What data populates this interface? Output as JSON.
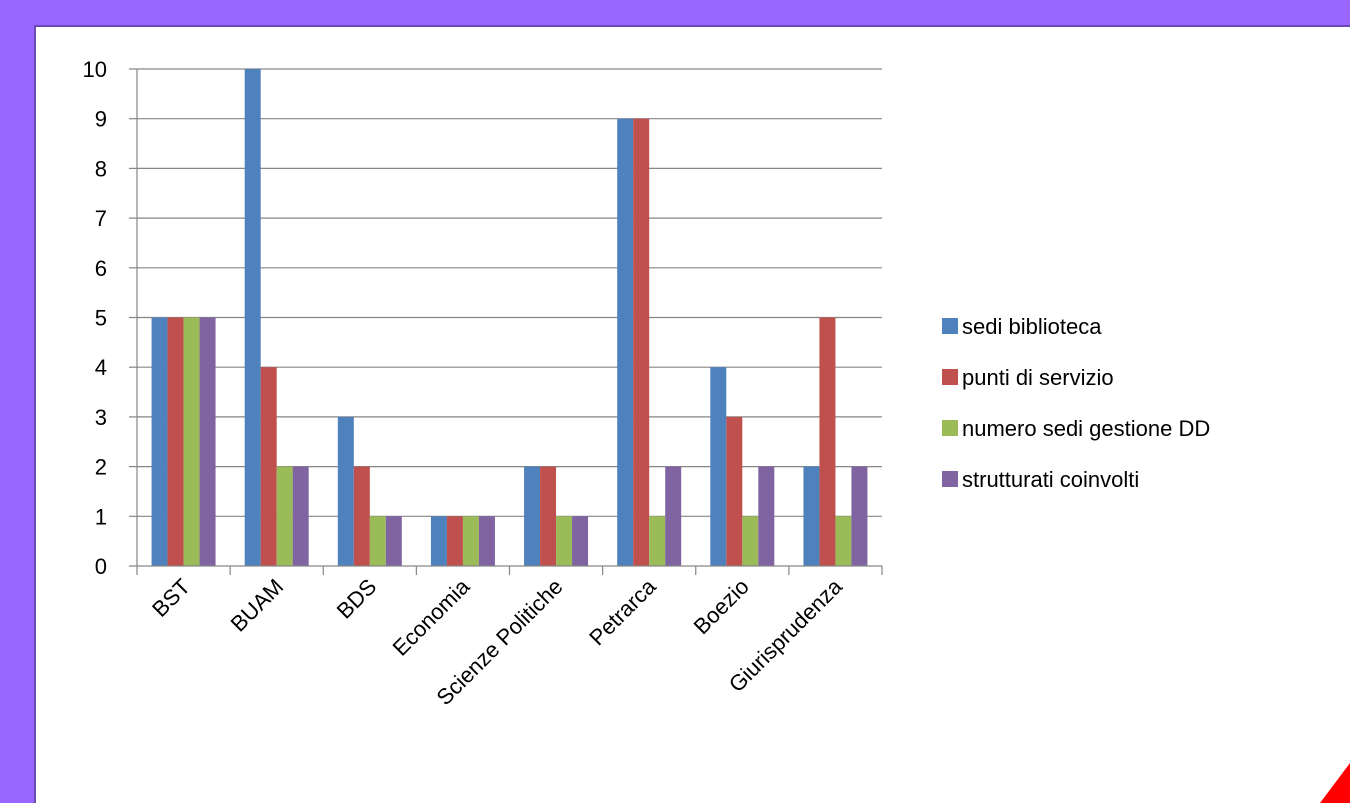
{
  "chart_data": {
    "type": "bar",
    "title": "",
    "xlabel": "",
    "ylabel": "",
    "ylim": [
      0,
      10
    ],
    "yticks": [
      0,
      1,
      2,
      3,
      4,
      5,
      6,
      7,
      8,
      9,
      10
    ],
    "grid": true,
    "legend_position": "right",
    "categories": [
      "BST",
      "BUAM",
      "BDS",
      "Economia",
      "Scienze Politiche",
      "Petrarca",
      "Boezio",
      "Giurisprudenza"
    ],
    "series": [
      {
        "name": "sedi biblioteca",
        "color": "#4f81bd",
        "values": [
          5,
          10,
          3,
          1,
          2,
          9,
          4,
          2
        ]
      },
      {
        "name": "punti di servizio",
        "color": "#c0504d",
        "values": [
          5,
          4,
          2,
          1,
          2,
          9,
          3,
          5
        ]
      },
      {
        "name": "numero sedi gestione DD",
        "color": "#9bbb59",
        "values": [
          5,
          2,
          1,
          1,
          1,
          1,
          1,
          1
        ]
      },
      {
        "name": "strutturati coinvolti",
        "color": "#8064a2",
        "values": [
          5,
          2,
          1,
          1,
          1,
          2,
          2,
          2
        ]
      }
    ]
  },
  "colors": {
    "background": "#9966ff",
    "slide": "#ffffff",
    "corner_accent": "#ff0000"
  }
}
